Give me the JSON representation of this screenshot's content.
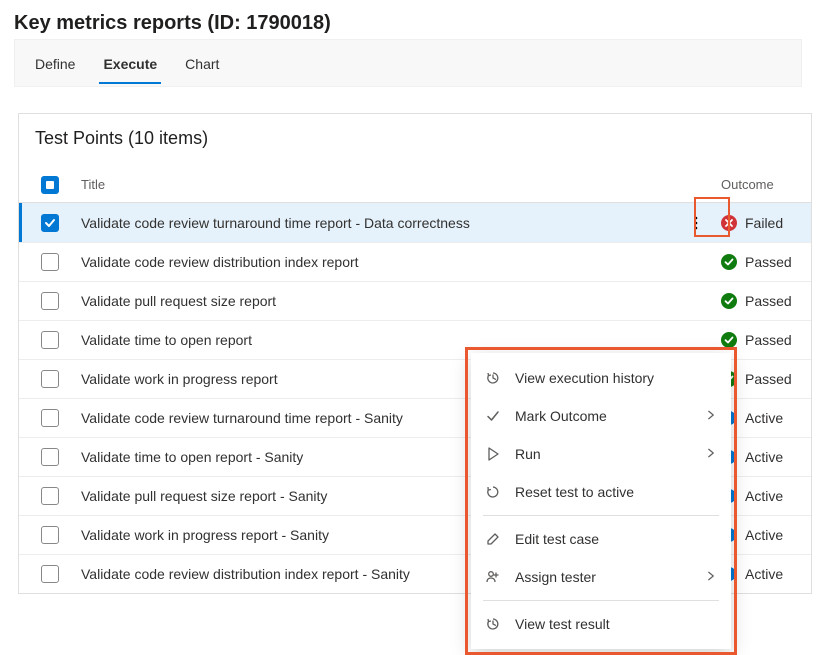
{
  "page": {
    "title": "Key metrics reports (ID: 1790018)"
  },
  "tabs": {
    "items": [
      {
        "label": "Define",
        "active": false
      },
      {
        "label": "Execute",
        "active": true
      },
      {
        "label": "Chart",
        "active": false
      }
    ]
  },
  "panel": {
    "title": "Test Points (10 items)",
    "columns": {
      "title": "Title",
      "outcome": "Outcome"
    },
    "header_checkbox": "indeterminate"
  },
  "colors": {
    "accent": "#0078d4",
    "passed": "#107c10",
    "failed": "#d13438",
    "active": "#0078d4",
    "highlight_border": "#e9582f",
    "selected_row_bg": "#e6f2fb"
  },
  "rows": [
    {
      "title": "Validate code review turnaround time report - Data correctness",
      "outcome": "Failed",
      "outcome_kind": "failed",
      "selected": true,
      "show_kebab": true
    },
    {
      "title": "Validate code review distribution index report",
      "outcome": "Passed",
      "outcome_kind": "passed",
      "selected": false,
      "show_kebab": false
    },
    {
      "title": "Validate pull request size report",
      "outcome": "Passed",
      "outcome_kind": "passed",
      "selected": false,
      "show_kebab": false
    },
    {
      "title": "Validate time to open report",
      "outcome": "Passed",
      "outcome_kind": "passed",
      "selected": false,
      "show_kebab": false
    },
    {
      "title": "Validate work in progress report",
      "outcome": "Passed",
      "outcome_kind": "passed",
      "selected": false,
      "show_kebab": false
    },
    {
      "title": "Validate code review turnaround time report - Sanity",
      "outcome": "Active",
      "outcome_kind": "active",
      "selected": false,
      "show_kebab": false
    },
    {
      "title": "Validate time to open report - Sanity",
      "outcome": "Active",
      "outcome_kind": "active",
      "selected": false,
      "show_kebab": false
    },
    {
      "title": "Validate pull request size report - Sanity",
      "outcome": "Active",
      "outcome_kind": "active",
      "selected": false,
      "show_kebab": false
    },
    {
      "title": "Validate work in progress report - Sanity",
      "outcome": "Active",
      "outcome_kind": "active",
      "selected": false,
      "show_kebab": false
    },
    {
      "title": "Validate code review distribution index report - Sanity",
      "outcome": "Active",
      "outcome_kind": "active",
      "selected": false,
      "show_kebab": false
    }
  ],
  "context_menu": {
    "groups": [
      [
        {
          "icon": "history",
          "label": "View execution history",
          "submenu": false
        },
        {
          "icon": "check",
          "label": "Mark Outcome",
          "submenu": true
        },
        {
          "icon": "play",
          "label": "Run",
          "submenu": true
        },
        {
          "icon": "reset",
          "label": "Reset test to active",
          "submenu": false
        }
      ],
      [
        {
          "icon": "edit",
          "label": "Edit test case",
          "submenu": false
        },
        {
          "icon": "assign",
          "label": "Assign tester",
          "submenu": true
        }
      ],
      [
        {
          "icon": "history",
          "label": "View test result",
          "submenu": false
        }
      ]
    ]
  }
}
